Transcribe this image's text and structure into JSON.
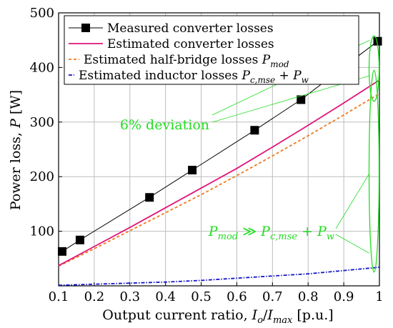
{
  "chart_data": {
    "type": "line",
    "xlabel": "Output current ratio, I_o/I_max [p.u.]",
    "xlabel_parts": {
      "pre": "Output current ratio, ",
      "num": "I",
      "num_sub": "o",
      "slash": "/",
      "den": "I",
      "den_sub": "max",
      "post": " [p.u.]"
    },
    "ylabel": "Power loss, P [W]",
    "ylabel_parts": {
      "pre": "Power loss, ",
      "var": "P",
      "unit": " [W]"
    },
    "xlim": [
      0.1,
      1.0
    ],
    "ylim": [
      0,
      500
    ],
    "xticks": [
      0.1,
      0.2,
      0.3,
      0.4,
      0.5,
      0.6,
      0.7,
      0.8,
      0.9,
      1.0
    ],
    "xtick_labels": [
      "0.1",
      "0.2",
      "0.3",
      "0.4",
      "0.5",
      "0.6",
      "0.7",
      "0.8",
      "0.9",
      "1"
    ],
    "yticks": [
      100,
      200,
      300,
      400,
      500
    ],
    "ytick_labels": [
      "100",
      "200",
      "300",
      "400",
      "500"
    ],
    "grid": true,
    "legend_position": "top",
    "series": [
      {
        "name": "Measured converter losses",
        "style": "line-square-markers",
        "color": "#000000",
        "x": [
          0.11,
          0.16,
          0.355,
          0.475,
          0.65,
          0.78,
          0.995
        ],
        "y": [
          63,
          84,
          162,
          212,
          285,
          341,
          448
        ]
      },
      {
        "name": "Estimated converter losses",
        "style": "solid",
        "color": "#e0157a",
        "x": [
          0.1,
          0.2,
          0.3,
          0.4,
          0.5,
          0.6,
          0.7,
          0.8,
          0.9,
          1.0
        ],
        "y": [
          37,
          72,
          107,
          143,
          179,
          215,
          254,
          294,
          335,
          377
        ]
      },
      {
        "name": "Estimated half-bridge losses P_mod",
        "style": "dashed",
        "color": "#f07a20",
        "x": [
          0.1,
          0.2,
          0.3,
          0.4,
          0.5,
          0.6,
          0.7,
          0.8,
          0.9,
          1.0
        ],
        "y": [
          36,
          68,
          101,
          134,
          167,
          202,
          238,
          275,
          313,
          352
        ]
      },
      {
        "name": "Estimated inductor losses P_c,mse + P_w",
        "style": "dash-dot",
        "color": "#1414c8",
        "x": [
          0.1,
          0.2,
          0.3,
          0.4,
          0.5,
          0.6,
          0.7,
          0.8,
          0.9,
          1.0
        ],
        "y": [
          1,
          3,
          5,
          7,
          10,
          14,
          18,
          22,
          28,
          34
        ]
      }
    ],
    "legend": [
      {
        "text": "Measured converter losses"
      },
      {
        "text": "Estimated converter losses"
      },
      {
        "pre": "Estimated half-bridge losses ",
        "var": "P",
        "sub": "mod"
      },
      {
        "pre": "Estimated inductor losses ",
        "var": "P",
        "sub": "c,mse",
        "plus": " + ",
        "var2": "P",
        "sub2": "w"
      }
    ],
    "annotations": {
      "deviation_label": "6% deviation",
      "relation": {
        "var": "P",
        "sub": "mod",
        "op": " ≫ ",
        "var2": "P",
        "sub2": "c,mse",
        "plus": " + ",
        "var3": "P",
        "sub3": "w"
      },
      "color": "#22dd22",
      "deviation_ellipse": {
        "x": 0.985,
        "y_center": 398,
        "y_half": 60
      },
      "relation_ellipse": {
        "x": 0.985,
        "y_center": 210,
        "y_half": 185
      }
    }
  }
}
